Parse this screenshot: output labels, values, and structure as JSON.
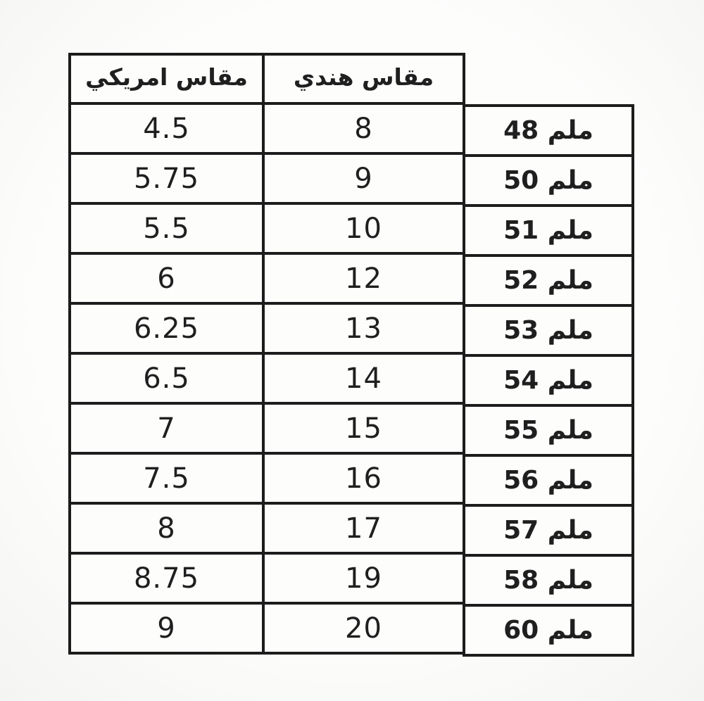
{
  "colors": {
    "border": "#1c1c1c",
    "cell_background": "#fdfdfc",
    "page_background": "#f8f8f6",
    "text": "#1f1f1f"
  },
  "chart_data": {
    "type": "table",
    "title": "",
    "columns": [
      {
        "key": "american",
        "label": "مقاس امريكي"
      },
      {
        "key": "indian",
        "label": "مقاس هندي"
      },
      {
        "key": "mm",
        "label": ""
      }
    ],
    "unit_label": "ملم",
    "series": [
      {
        "name": "مقاس امريكي",
        "values": [
          4.5,
          5.75,
          5.5,
          6,
          6.25,
          6.5,
          7,
          7.5,
          8,
          8.75,
          9
        ]
      },
      {
        "name": "مقاس هندي",
        "values": [
          8,
          9,
          10,
          12,
          13,
          14,
          15,
          16,
          17,
          19,
          20
        ]
      },
      {
        "name": "ملم",
        "values": [
          48,
          50,
          51,
          52,
          53,
          54,
          55,
          56,
          57,
          58,
          60
        ]
      }
    ],
    "rows": [
      {
        "american": "4.5",
        "indian": "8",
        "mm_display": "48 ملم"
      },
      {
        "american": "5.75",
        "indian": "9",
        "mm_display": "50 ملم"
      },
      {
        "american": "5.5",
        "indian": "10",
        "mm_display": "51 ملم"
      },
      {
        "american": "6",
        "indian": "12",
        "mm_display": "52 ملم"
      },
      {
        "american": "6.25",
        "indian": "13",
        "mm_display": "53 ملم"
      },
      {
        "american": "6.5",
        "indian": "14",
        "mm_display": "54 ملم"
      },
      {
        "american": "7",
        "indian": "15",
        "mm_display": "55 ملم"
      },
      {
        "american": "7.5",
        "indian": "16",
        "mm_display": "56 ملم"
      },
      {
        "american": "8",
        "indian": "17",
        "mm_display": "57 ملم"
      },
      {
        "american": "8.75",
        "indian": "19",
        "mm_display": "58 ملم"
      },
      {
        "american": "9",
        "indian": "20",
        "mm_display": "60 ملم"
      }
    ]
  }
}
